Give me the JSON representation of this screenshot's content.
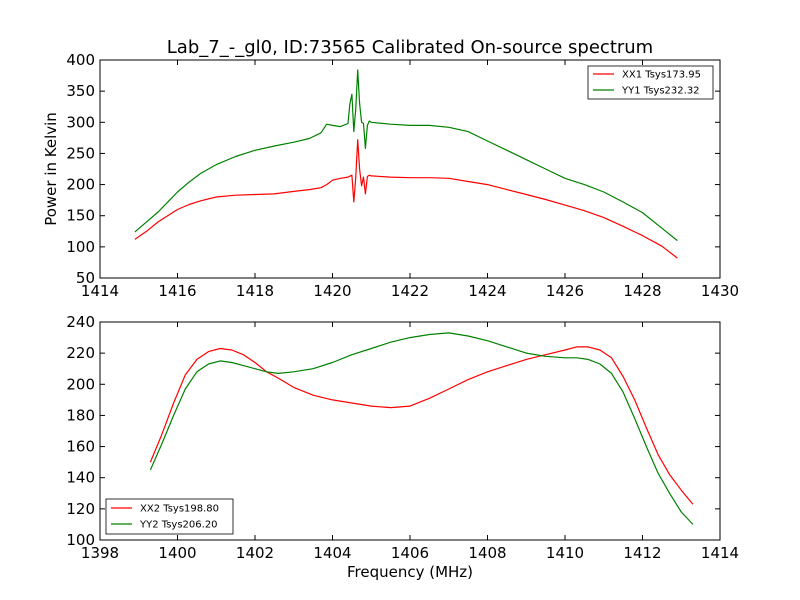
{
  "title": "Lab_7_-_gl0, ID:73565 Calibrated On-source spectrum",
  "chart_data": [
    {
      "type": "line",
      "ylabel": "Power in Kelvin",
      "xlabel": "",
      "xlim": [
        1414,
        1430
      ],
      "ylim": [
        50,
        400
      ],
      "xticks": [
        1414,
        1416,
        1418,
        1420,
        1422,
        1424,
        1426,
        1428,
        1430
      ],
      "yticks": [
        50,
        100,
        150,
        200,
        250,
        300,
        350,
        400
      ],
      "legend_position": "top-right",
      "grid": false,
      "series": [
        {
          "name": "XX1 Tsys173.95",
          "color": "#ff0000",
          "x": [
            1414.9,
            1415.2,
            1415.5,
            1415.8,
            1416.0,
            1416.3,
            1416.6,
            1417.0,
            1417.5,
            1418.0,
            1418.5,
            1419.0,
            1419.4,
            1419.7,
            1419.85,
            1420.0,
            1420.2,
            1420.4,
            1420.5,
            1420.55,
            1420.6,
            1420.65,
            1420.7,
            1420.75,
            1420.8,
            1420.85,
            1420.9,
            1420.95,
            1421.0,
            1421.5,
            1422.0,
            1422.5,
            1423.0,
            1423.5,
            1424.0,
            1424.5,
            1425.0,
            1425.5,
            1426.0,
            1426.5,
            1427.0,
            1427.5,
            1428.0,
            1428.5,
            1428.9
          ],
          "y": [
            112,
            125,
            140,
            152,
            160,
            168,
            174,
            180,
            183,
            184,
            185,
            189,
            192,
            195,
            200,
            207,
            210,
            212,
            215,
            172,
            210,
            272,
            225,
            198,
            212,
            185,
            213,
            215,
            214,
            212,
            211,
            211,
            210,
            205,
            200,
            192,
            184,
            176,
            167,
            158,
            147,
            133,
            118,
            101,
            82
          ]
        },
        {
          "name": "YY1 Tsys232.32",
          "color": "#008000",
          "x": [
            1414.9,
            1415.2,
            1415.5,
            1415.8,
            1416.0,
            1416.3,
            1416.6,
            1417.0,
            1417.5,
            1418.0,
            1418.5,
            1419.0,
            1419.4,
            1419.7,
            1419.85,
            1420.0,
            1420.2,
            1420.4,
            1420.45,
            1420.5,
            1420.55,
            1420.6,
            1420.65,
            1420.7,
            1420.75,
            1420.8,
            1420.85,
            1420.9,
            1420.95,
            1421.0,
            1421.5,
            1422.0,
            1422.5,
            1423.0,
            1423.5,
            1424.0,
            1424.5,
            1425.0,
            1425.5,
            1426.0,
            1426.5,
            1427.0,
            1427.5,
            1428.0,
            1428.5,
            1428.9
          ],
          "y": [
            124,
            140,
            156,
            175,
            188,
            204,
            218,
            232,
            245,
            255,
            262,
            268,
            274,
            283,
            297,
            295,
            293,
            298,
            330,
            345,
            285,
            320,
            384,
            330,
            300,
            298,
            258,
            295,
            302,
            300,
            297,
            295,
            295,
            292,
            285,
            270,
            255,
            240,
            225,
            210,
            200,
            188,
            172,
            155,
            130,
            110
          ]
        }
      ]
    },
    {
      "type": "line",
      "ylabel": "",
      "xlabel": "Frequency (MHz)",
      "xlim": [
        1398,
        1414
      ],
      "ylim": [
        100,
        240
      ],
      "xticks": [
        1398,
        1400,
        1402,
        1404,
        1406,
        1408,
        1410,
        1412,
        1414
      ],
      "yticks": [
        100,
        120,
        140,
        160,
        180,
        200,
        220,
        240
      ],
      "legend_position": "bottom-left",
      "grid": false,
      "series": [
        {
          "name": "XX2 Tsys198.80",
          "color": "#ff0000",
          "x": [
            1399.3,
            1399.6,
            1399.9,
            1400.2,
            1400.5,
            1400.8,
            1401.1,
            1401.4,
            1401.7,
            1402.0,
            1402.3,
            1402.6,
            1403.0,
            1403.5,
            1404.0,
            1404.5,
            1405.0,
            1405.5,
            1406.0,
            1406.5,
            1407.0,
            1407.5,
            1408.0,
            1408.5,
            1409.0,
            1409.5,
            1410.0,
            1410.3,
            1410.6,
            1410.9,
            1411.2,
            1411.5,
            1411.8,
            1412.1,
            1412.4,
            1412.7,
            1413.0,
            1413.3
          ],
          "y": [
            150,
            168,
            188,
            206,
            216,
            221,
            223,
            222,
            219,
            214,
            208,
            204,
            198,
            193,
            190,
            188,
            186,
            185,
            186,
            191,
            197,
            203,
            208,
            212,
            216,
            219,
            222,
            224,
            224,
            222,
            217,
            205,
            190,
            172,
            155,
            142,
            132,
            123
          ]
        },
        {
          "name": "YY2 Tsys206.20",
          "color": "#008000",
          "x": [
            1399.3,
            1399.6,
            1399.9,
            1400.2,
            1400.5,
            1400.8,
            1401.1,
            1401.4,
            1401.7,
            1402.0,
            1402.3,
            1402.6,
            1403.0,
            1403.5,
            1404.0,
            1404.5,
            1405.0,
            1405.5,
            1406.0,
            1406.5,
            1407.0,
            1407.5,
            1408.0,
            1408.5,
            1409.0,
            1409.5,
            1410.0,
            1410.3,
            1410.6,
            1410.9,
            1411.2,
            1411.5,
            1411.8,
            1412.1,
            1412.4,
            1412.7,
            1413.0,
            1413.3
          ],
          "y": [
            145,
            162,
            180,
            197,
            208,
            213,
            215,
            214,
            212,
            210,
            208,
            207,
            208,
            210,
            214,
            219,
            223,
            227,
            230,
            232,
            233,
            231,
            228,
            224,
            220,
            218,
            217,
            217,
            216,
            213,
            207,
            195,
            178,
            160,
            143,
            130,
            118,
            110
          ]
        }
      ]
    }
  ]
}
